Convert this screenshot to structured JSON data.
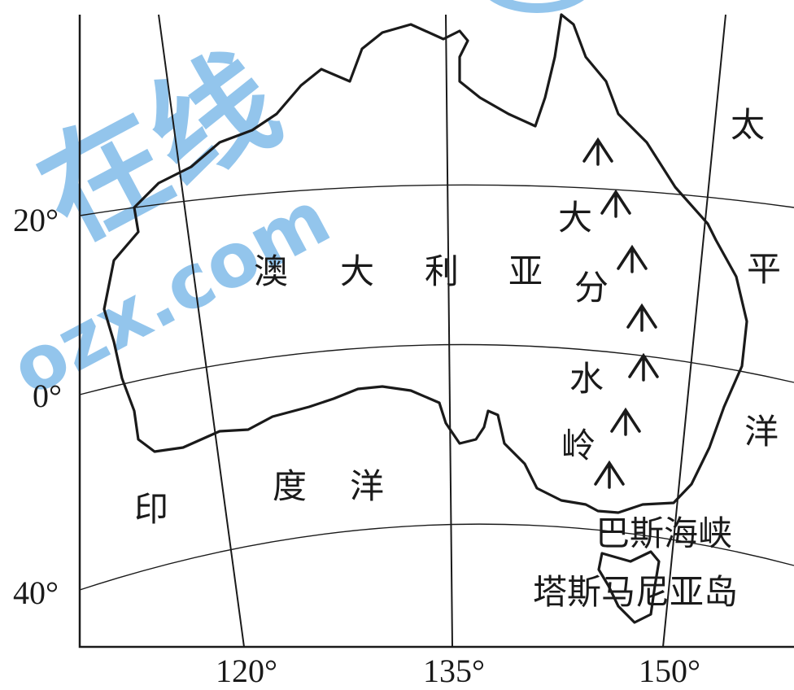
{
  "watermark": {
    "text_main": "在线",
    "text_url": "ozx.com",
    "color": "#6fb2e6"
  },
  "latitude_labels": [
    "20°",
    "0°",
    "40°"
  ],
  "longitude_labels": [
    "120°",
    "135°",
    "150°"
  ],
  "continent_label": [
    "澳",
    "大",
    "利",
    "亚"
  ],
  "range_label": [
    "大",
    "分",
    "水",
    "岭"
  ],
  "ocean_west": [
    "印",
    "度",
    "洋"
  ],
  "ocean_east": [
    "太",
    "平",
    "洋"
  ],
  "strait_label": "巴斯海峡",
  "island_label": "塔斯马尼亚岛",
  "colors": {
    "line": "#1a1a1a",
    "background": "#ffffff"
  }
}
